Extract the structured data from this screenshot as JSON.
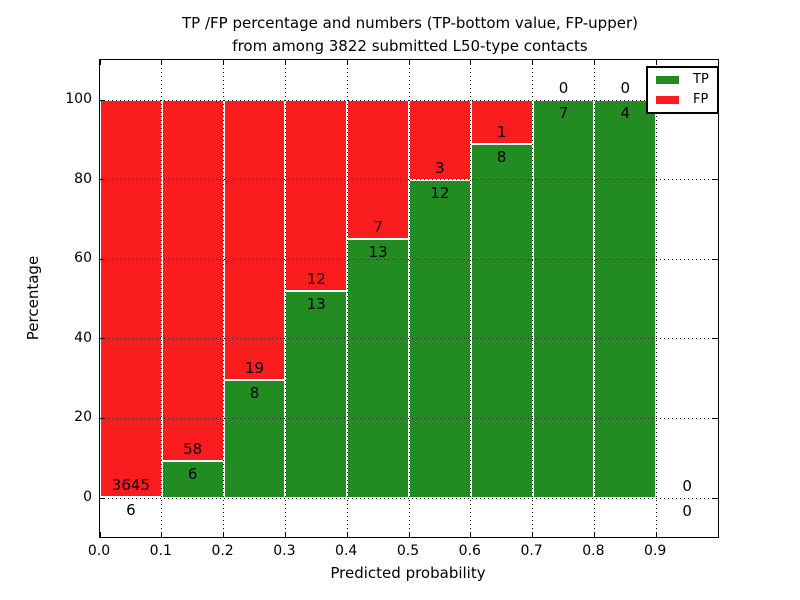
{
  "title": {
    "line1": "TP /FP percentage and numbers (TP-bottom value, FP-upper)",
    "line2": "from among 3822 submitted L50-type contacts"
  },
  "axes": {
    "xlabel": "Predicted probability",
    "ylabel": "Percentage"
  },
  "legend": {
    "position": "upper right",
    "items": [
      {
        "label": "TP",
        "color": "#228B22"
      },
      {
        "label": "FP",
        "color": "#FB1D1D"
      }
    ]
  },
  "chart_data": {
    "type": "bar",
    "stacked": true,
    "unit": "percent",
    "title": "TP /FP percentage and numbers (TP-bottom value, FP-upper) from among 3822 submitted L50-type contacts",
    "xlabel": "Predicted probability",
    "ylabel": "Percentage",
    "xlim": [
      0.0,
      1.0
    ],
    "ylim": [
      -10,
      110
    ],
    "grid": "dotted",
    "legend_position": "upper right",
    "total_contacts": 3822,
    "bin_width": 0.1,
    "colors": {
      "tp": "#228B22",
      "fp": "#FB1D1D"
    },
    "xticks": [
      {
        "value": 0.0,
        "label": "0.0"
      },
      {
        "value": 0.1,
        "label": "0.1"
      },
      {
        "value": 0.2,
        "label": "0.2"
      },
      {
        "value": 0.3,
        "label": "0.3"
      },
      {
        "value": 0.4,
        "label": "0.4"
      },
      {
        "value": 0.5,
        "label": "0.5"
      },
      {
        "value": 0.6,
        "label": "0.6"
      },
      {
        "value": 0.7,
        "label": "0.7"
      },
      {
        "value": 0.8,
        "label": "0.8"
      },
      {
        "value": 0.9,
        "label": "0.9"
      }
    ],
    "yticks": [
      {
        "value": 0,
        "label": "0"
      },
      {
        "value": 20,
        "label": "20"
      },
      {
        "value": 40,
        "label": "40"
      },
      {
        "value": 60,
        "label": "60"
      },
      {
        "value": 80,
        "label": "80"
      },
      {
        "value": 100,
        "label": "100"
      }
    ],
    "categories": [
      "0.0-0.1",
      "0.1-0.2",
      "0.2-0.3",
      "0.3-0.4",
      "0.4-0.5",
      "0.5-0.6",
      "0.6-0.7",
      "0.7-0.8",
      "0.8-0.9",
      "0.9-1.0"
    ],
    "series": [
      {
        "name": "TP",
        "values": [
          6,
          6,
          8,
          13,
          13,
          12,
          8,
          7,
          4,
          0
        ]
      },
      {
        "name": "FP",
        "values": [
          3645,
          58,
          19,
          12,
          7,
          3,
          1,
          0,
          0,
          0
        ]
      }
    ],
    "bins": [
      {
        "x0": 0.0,
        "tp": 6,
        "fp": 3645,
        "tp_pct": 0.16,
        "tp_label": "6",
        "fp_label": "3645"
      },
      {
        "x0": 0.1,
        "tp": 6,
        "fp": 58,
        "tp_pct": 9.38,
        "tp_label": "6",
        "fp_label": "58"
      },
      {
        "x0": 0.2,
        "tp": 8,
        "fp": 19,
        "tp_pct": 29.63,
        "tp_label": "8",
        "fp_label": "19"
      },
      {
        "x0": 0.3,
        "tp": 13,
        "fp": 12,
        "tp_pct": 52.0,
        "tp_label": "13",
        "fp_label": "12"
      },
      {
        "x0": 0.4,
        "tp": 13,
        "fp": 7,
        "tp_pct": 65.0,
        "tp_label": "13",
        "fp_label": "7"
      },
      {
        "x0": 0.5,
        "tp": 12,
        "fp": 3,
        "tp_pct": 80.0,
        "tp_label": "12",
        "fp_label": "3"
      },
      {
        "x0": 0.6,
        "tp": 8,
        "fp": 1,
        "tp_pct": 88.89,
        "tp_label": "8",
        "fp_label": "1"
      },
      {
        "x0": 0.7,
        "tp": 7,
        "fp": 0,
        "tp_pct": 100.0,
        "tp_label": "7",
        "fp_label": "0"
      },
      {
        "x0": 0.8,
        "tp": 4,
        "fp": 0,
        "tp_pct": 100.0,
        "tp_label": "4",
        "fp_label": "0"
      },
      {
        "x0": 0.9,
        "tp": 0,
        "fp": 0,
        "tp_pct": 0.0,
        "tp_label": "0",
        "fp_label": "0"
      }
    ]
  }
}
